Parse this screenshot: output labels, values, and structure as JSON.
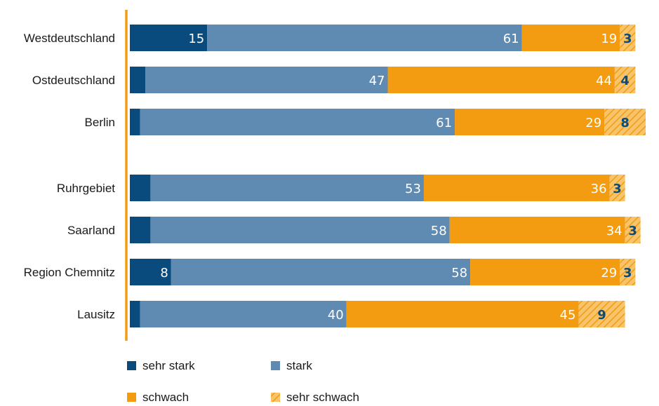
{
  "colors": {
    "sehr_stark": "#0a4b7d",
    "stark": "#5f8ab2",
    "schwach": "#f39c12",
    "sehr_schwach_fill": "#f7c46c",
    "sehr_schwach_hatch": "#f39c12",
    "axis": "#f39c12",
    "label_light": "#ffffff",
    "label_dark": "#0a4b7d"
  },
  "chart_data": {
    "type": "bar",
    "orientation": "horizontal",
    "stacked": true,
    "xlim": [
      0,
      100
    ],
    "categories": [
      "Westdeutschland",
      "Ostdeutschland",
      "Berlin",
      "Ruhrgebiet",
      "Saarland",
      "Region Chemnitz",
      "Lausitz"
    ],
    "groups": [
      [
        0,
        1,
        2
      ],
      [
        3,
        4,
        5,
        6
      ]
    ],
    "series": [
      {
        "key": "sehr_stark",
        "name": "sehr stark",
        "values": [
          15,
          3,
          2,
          4,
          4,
          8,
          2
        ]
      },
      {
        "key": "stark",
        "name": "stark",
        "values": [
          61,
          47,
          61,
          53,
          58,
          58,
          40
        ]
      },
      {
        "key": "schwach",
        "name": "schwach",
        "values": [
          19,
          44,
          29,
          36,
          34,
          29,
          45
        ]
      },
      {
        "key": "sehr_schwach",
        "name": "sehr schwach",
        "values": [
          3,
          4,
          8,
          3,
          3,
          3,
          9
        ]
      }
    ],
    "legend_position": "bottom-left",
    "grid": false
  }
}
